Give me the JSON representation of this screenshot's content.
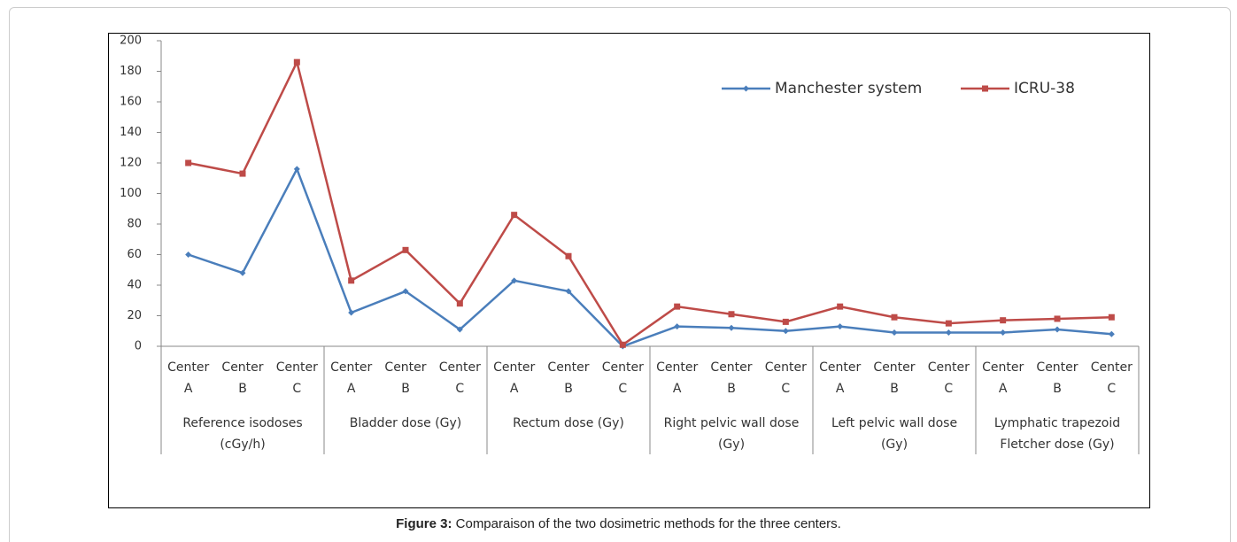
{
  "chart_data": {
    "type": "line",
    "categories": [
      "Center A",
      "Center B",
      "Center C",
      "Center A",
      "Center B",
      "Center C",
      "Center A",
      "Center B",
      "Center C",
      "Center A",
      "Center B",
      "Center C",
      "Center A",
      "Center B",
      "Center C",
      "Center A",
      "Center B",
      "Center C"
    ],
    "groups": [
      "Reference isodoses (cGy/h)",
      "Bladder dose (Gy)",
      "Rectum dose (Gy)",
      "Right pelvic wall dose (Gy)",
      "Left pelvic wall dose (Gy)",
      "Lymphatic trapezoid Fletcher dose (Gy)"
    ],
    "series": [
      {
        "name": "Manchester system",
        "color": "#4a7ebb",
        "marker": "diamond",
        "values": [
          60,
          48,
          116,
          22,
          36,
          11,
          43,
          36,
          0,
          13,
          12,
          10,
          13,
          9,
          9,
          9,
          11,
          8
        ]
      },
      {
        "name": "ICRU-38",
        "color": "#be4b48",
        "marker": "square",
        "values": [
          120,
          113,
          186,
          43,
          63,
          28,
          86,
          59,
          1,
          26,
          21,
          16,
          26,
          19,
          15,
          17,
          18,
          19
        ]
      }
    ],
    "ylim": [
      0,
      200
    ],
    "yticks": [
      0,
      20,
      40,
      60,
      80,
      100,
      120,
      140,
      160,
      180,
      200
    ],
    "grid": false,
    "legend": "top-right",
    "caption_label": "Figure 3:",
    "caption": "Comparaison of the two dosimetric  methods for the three centers."
  }
}
